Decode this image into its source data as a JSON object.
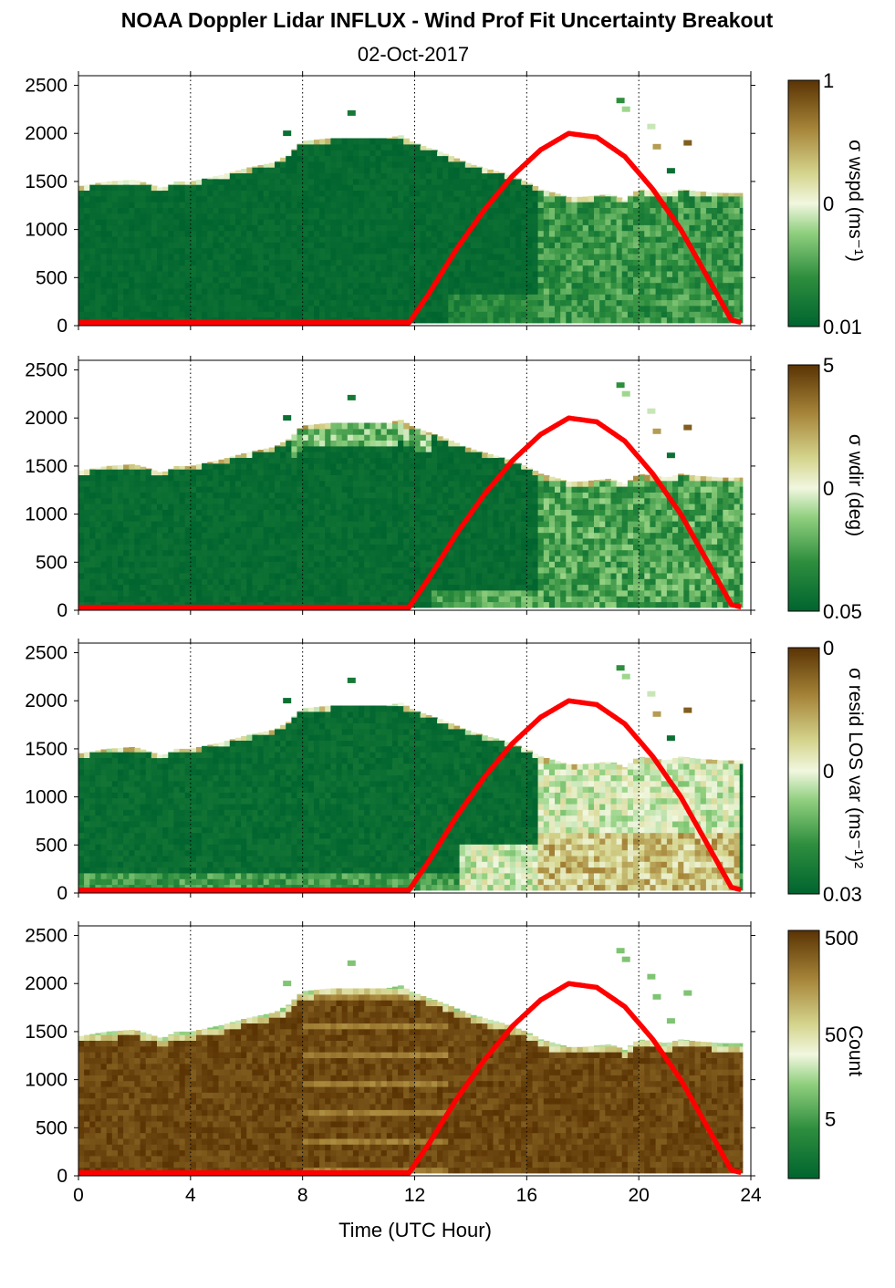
{
  "title": "NOAA Doppler Lidar INFLUX - Wind Prof Fit Uncertainty Breakout",
  "subtitle": "02-Oct-2017",
  "xlabel": "Time (UTC Hour)",
  "colors": {
    "dark_green": "#00642f",
    "mid_green": "#3f9b44",
    "light_green": "#a8dc97",
    "pale": "#eef6dc",
    "tan": "#bfae62",
    "brown": "#7a4a0a",
    "dark_brown": "#5a3303",
    "sun_curve": "#ff0000"
  },
  "chart_data": {
    "type": "heatmap",
    "x_ticks": [
      "0",
      "4",
      "8",
      "12",
      "16",
      "20",
      "24"
    ],
    "x_tick_values": [
      0,
      4,
      8,
      12,
      16,
      20,
      24
    ],
    "xlim": [
      0,
      24
    ],
    "ylim": [
      0,
      2600
    ],
    "y_ticks": [
      "0",
      "500",
      "1000",
      "1500",
      "2000",
      "2500"
    ],
    "y_tick_values": [
      0,
      500,
      1000,
      1500,
      2000,
      2500
    ],
    "grid": "dotted vertical lines at 4-hour intervals",
    "sun_elevation_curve": {
      "x": [
        0,
        11.8,
        12.5,
        13.5,
        14.5,
        15.5,
        16.5,
        17.5,
        18.5,
        19.5,
        20.5,
        21.5,
        22.5,
        23.3,
        23.7
      ],
      "y": [
        30,
        30,
        330,
        800,
        1210,
        1560,
        1830,
        2000,
        1960,
        1760,
        1420,
        1000,
        480,
        60,
        30
      ]
    },
    "boundary_layer_top": {
      "x": [
        0,
        1,
        2,
        3,
        3.5,
        4,
        5,
        6,
        7,
        7.5,
        8,
        9,
        10,
        11,
        11.5,
        12,
        13,
        14,
        15,
        16,
        16.5,
        17,
        17.5,
        18,
        19,
        19.5,
        20,
        21,
        21.5,
        22,
        23,
        23.7
      ],
      "y": [
        1450,
        1500,
        1520,
        1430,
        1500,
        1500,
        1560,
        1640,
        1700,
        1780,
        1920,
        1950,
        1950,
        1950,
        1980,
        1900,
        1800,
        1680,
        1600,
        1500,
        1420,
        1380,
        1340,
        1340,
        1370,
        1310,
        1420,
        1380,
        1420,
        1400,
        1380,
        1380
      ]
    },
    "panels": [
      {
        "colorbar_label": "σ wspd (ms⁻¹)",
        "colorbar_ticks": [
          "1",
          "0",
          "0.01"
        ],
        "colorbar_tick_positions": [
          1.0,
          0.5,
          0.0
        ],
        "field": "wspd"
      },
      {
        "colorbar_label": "σ wdir (deg)",
        "colorbar_ticks": [
          "5",
          "0",
          "0.05"
        ],
        "colorbar_tick_positions": [
          1.0,
          0.5,
          0.0
        ],
        "field": "wdir"
      },
      {
        "colorbar_label": "σ resid LOS var (ms⁻¹)²",
        "colorbar_ticks": [
          "0",
          "0",
          "0.03"
        ],
        "colorbar_tick_positions": [
          1.0,
          0.5,
          0.0
        ],
        "field": "resid"
      },
      {
        "colorbar_label": "Count",
        "colorbar_ticks": [
          "500",
          "50",
          "5"
        ],
        "colorbar_tick_positions": [
          0.97,
          0.58,
          0.24
        ],
        "field": "count"
      }
    ]
  }
}
